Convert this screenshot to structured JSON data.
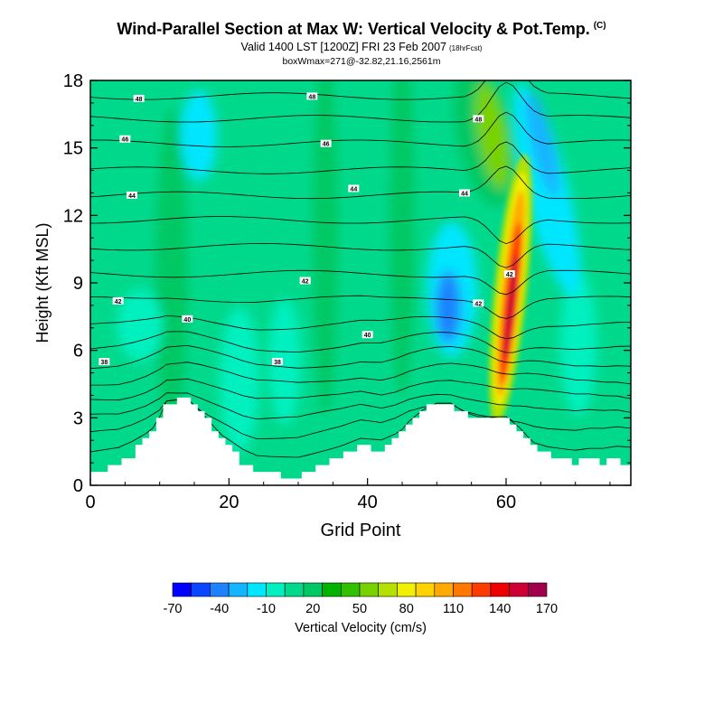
{
  "header": {
    "title": "Wind-Parallel Section at Max W: Vertical Velocity & Pot.Temp.",
    "copyright": "(C)",
    "valid": "Valid 1400 LST [1200Z] FRI 23 Feb 2007",
    "forecast_hour": "(18hrFcst)",
    "box_info": "boxWmax=271@-32.82,21.16,2561m"
  },
  "chart_data": {
    "type": "heatmap",
    "title": "Wind-Parallel Section at Max W: Vertical Velocity & Pot.Temp.",
    "xlabel": "Grid Point",
    "ylabel": "Height (Kft MSL)",
    "xlim": [
      0,
      78
    ],
    "ylim": [
      0,
      18
    ],
    "x_ticks": [
      0,
      20,
      40,
      60
    ],
    "y_ticks": [
      0,
      3,
      6,
      9,
      12,
      15,
      18
    ],
    "grid": false,
    "colorbar": {
      "label": "Vertical Velocity (cm/s)",
      "placement": "bottom",
      "tick_labels": [
        "-70",
        "-40",
        "-10",
        "20",
        "50",
        "80",
        "110",
        "140",
        "170"
      ],
      "levels": [
        -70,
        -55,
        -40,
        -25,
        -10,
        5,
        20,
        35,
        50,
        65,
        80,
        95,
        110,
        125,
        140,
        155,
        170
      ],
      "colors": [
        "#0000ff",
        "#0a45ff",
        "#1e82ff",
        "#14b4ff",
        "#00e6ff",
        "#00f0c0",
        "#00d98c",
        "#00c864",
        "#00b400",
        "#30c000",
        "#78d200",
        "#b4e100",
        "#f0f000",
        "#ffd200",
        "#ffaa00",
        "#ff7800",
        "#ff3c00",
        "#ee0000",
        "#cc0033",
        "#a0004b"
      ]
    },
    "terrain_kft": [
      [
        0,
        0.6
      ],
      [
        2,
        0.7
      ],
      [
        4,
        0.8
      ],
      [
        6,
        1.3
      ],
      [
        8,
        2.0
      ],
      [
        10,
        3.0
      ],
      [
        11,
        3.7
      ],
      [
        14,
        3.8
      ],
      [
        16,
        3.2
      ],
      [
        18,
        2.5
      ],
      [
        20,
        1.8
      ],
      [
        22,
        1.0
      ],
      [
        24,
        0.5
      ],
      [
        30,
        0.4
      ],
      [
        33,
        0.8
      ],
      [
        36,
        1.2
      ],
      [
        39,
        1.8
      ],
      [
        42,
        1.5
      ],
      [
        44,
        2.0
      ],
      [
        46,
        2.8
      ],
      [
        48,
        3.3
      ],
      [
        50,
        3.6
      ],
      [
        52,
        3.6
      ],
      [
        54,
        3.2
      ],
      [
        56,
        3.0
      ],
      [
        58,
        3.0
      ],
      [
        60,
        3.0
      ],
      [
        62,
        2.5
      ],
      [
        64,
        1.8
      ],
      [
        66,
        1.4
      ],
      [
        68,
        1.2
      ],
      [
        70,
        1.0
      ],
      [
        72,
        1.1
      ],
      [
        74,
        1.0
      ],
      [
        76,
        1.1
      ],
      [
        78,
        0.9
      ]
    ],
    "vertical_velocity_features": [
      {
        "name": "updraft core",
        "x": 60.5,
        "y": 8.5,
        "peak_cm_s": 170
      },
      {
        "name": "downdraft",
        "x": 51.5,
        "y": 8.0,
        "peak_cm_s": -50
      },
      {
        "name": "downdraft aloft",
        "x": 64.5,
        "y": 15.0,
        "peak_cm_s": -40
      }
    ],
    "isentropes_label": "Pot.Temp.",
    "contour_labels": [
      {
        "text": "48",
        "x": 7,
        "y": 17.2
      },
      {
        "text": "48",
        "x": 32,
        "y": 17.3
      },
      {
        "text": "48",
        "x": 56,
        "y": 16.3
      },
      {
        "text": "46",
        "x": 5,
        "y": 15.4
      },
      {
        "text": "46",
        "x": 34,
        "y": 15.2
      },
      {
        "text": "44",
        "x": 6,
        "y": 12.9
      },
      {
        "text": "44",
        "x": 38,
        "y": 13.2
      },
      {
        "text": "44",
        "x": 54,
        "y": 13.0
      },
      {
        "text": "42",
        "x": 4,
        "y": 8.2
      },
      {
        "text": "42",
        "x": 31,
        "y": 9.1
      },
      {
        "text": "42",
        "x": 60.5,
        "y": 9.4
      },
      {
        "text": "42",
        "x": 56,
        "y": 8.1
      },
      {
        "text": "40",
        "x": 14,
        "y": 7.4
      },
      {
        "text": "40",
        "x": 40,
        "y": 6.7
      },
      {
        "text": "38",
        "x": 2,
        "y": 5.5
      },
      {
        "text": "38",
        "x": 27,
        "y": 5.5
      }
    ]
  }
}
